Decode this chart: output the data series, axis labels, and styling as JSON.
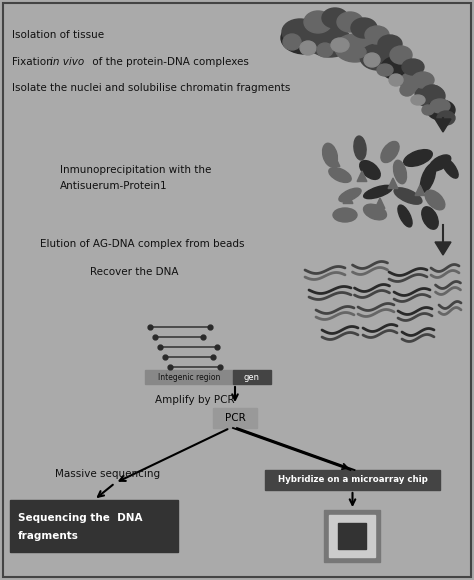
{
  "bg_color": "#aaaaaa",
  "border_color": "#555555",
  "dark1": "#2a2a2a",
  "dark2": "#444444",
  "dark3": "#666666",
  "dark4": "#888888",
  "dark5": "#999999",
  "text_dark": "#111111",
  "text_white": "#ffffff",
  "pcr_box_color": "#999999",
  "hybridize_box_color": "#444444",
  "seq_box_color": "#333333",
  "font_size": 7.5,
  "steps": {
    "step1": "Isolation of tissue",
    "step2_pre": "Fixation ",
    "step2_italic": "in vivo",
    "step2_post": " of the protein-DNA complexes",
    "step3": "Isolate the nuclei and solubilise chromatin fragments",
    "step4a": "Inmunoprecipitation with the",
    "step4b": "Antisuerum-Protein1",
    "step5": "Elution of AG-DNA complex from beads",
    "step6": "Recover the DNA",
    "step7": "Amplify by PCR",
    "step8": "Massive sequencing",
    "pcr": "PCR",
    "hybridize": "Hybridize on a microarray chip",
    "seq_line1": "Sequencing the  DNA",
    "seq_line2": "fragments"
  }
}
